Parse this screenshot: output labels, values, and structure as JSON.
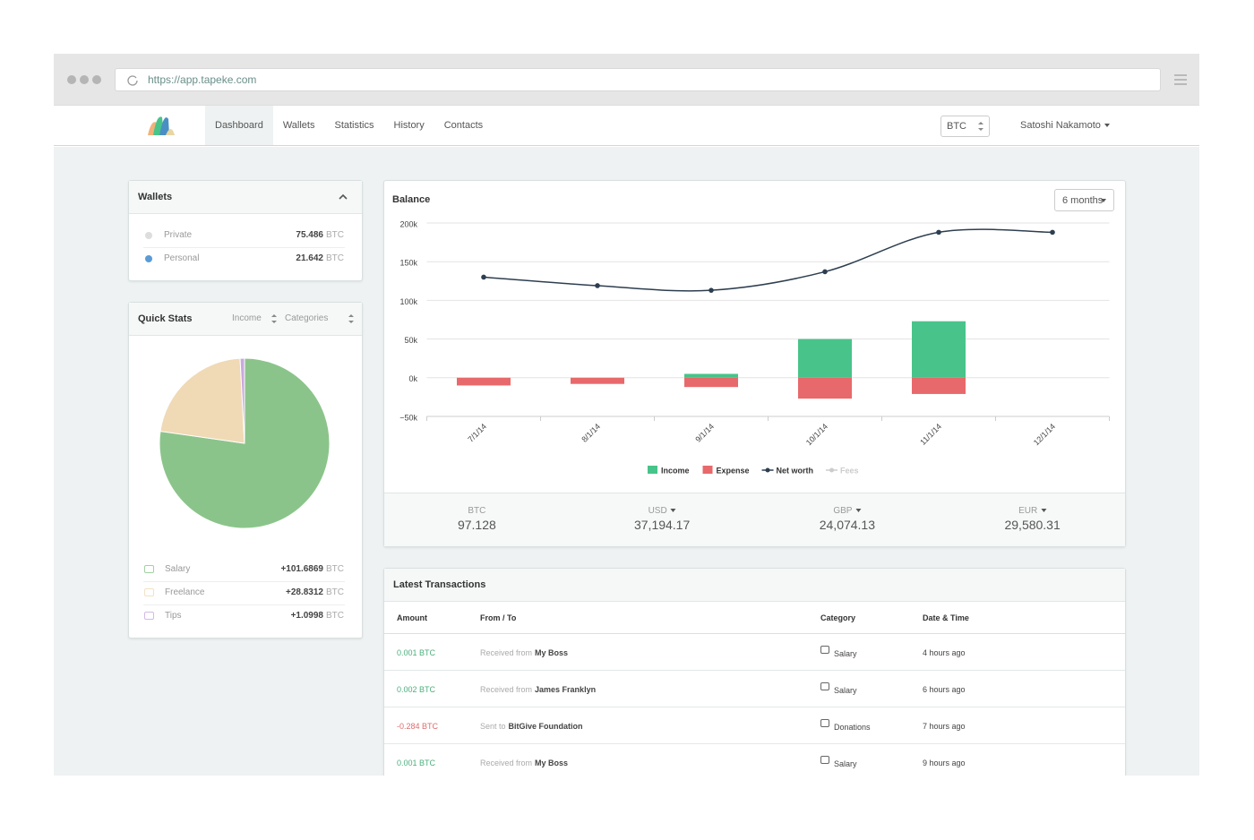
{
  "browser": {
    "url": "https://app.tapeke.com"
  },
  "nav": {
    "items": [
      "Dashboard",
      "Wallets",
      "Statistics",
      "History",
      "Contacts"
    ],
    "currency": "BTC",
    "user": "Satoshi Nakamoto"
  },
  "wallets": {
    "title": "Wallets",
    "rows": [
      {
        "name": "Private",
        "amount": "75.486",
        "unit": "BTC",
        "color": "#dddddd"
      },
      {
        "name": "Personal",
        "amount": "21.642",
        "unit": "BTC",
        "color": "#5b9bd5"
      }
    ]
  },
  "quick_stats": {
    "title": "Quick Stats",
    "filters": [
      "Income",
      "Categories"
    ]
  },
  "chart_data": [
    {
      "type": "bar",
      "title": "Balance",
      "range_button": "6 months",
      "categories": [
        "7/1/14",
        "8/1/14",
        "9/1/14",
        "10/1/14",
        "11/1/14",
        "12/1/14"
      ],
      "series": [
        {
          "name": "Income",
          "type": "bar",
          "color": "#48c48a",
          "values": [
            0,
            0,
            5000,
            50000,
            73000,
            0
          ]
        },
        {
          "name": "Expense",
          "type": "bar",
          "color": "#e8696b",
          "values": [
            -10000,
            -8000,
            -12000,
            -27000,
            -21000,
            0
          ]
        },
        {
          "name": "Net worth",
          "type": "line",
          "color": "#2d3e50",
          "values": [
            130000,
            119000,
            113000,
            137000,
            188000,
            188000
          ]
        },
        {
          "name": "Fees",
          "type": "line",
          "color": "#cccccc",
          "hidden": true,
          "values": [
            null,
            null,
            null,
            null,
            null,
            null
          ]
        }
      ],
      "ylim": [
        -50000,
        200000
      ],
      "yticks": [
        {
          "value": -50000,
          "label": "−50k"
        },
        {
          "value": 0,
          "label": "0k"
        },
        {
          "value": 50000,
          "label": "50k"
        },
        {
          "value": 100000,
          "label": "100k"
        },
        {
          "value": 150000,
          "label": "150k"
        },
        {
          "value": 200000,
          "label": "200k"
        }
      ],
      "grid": true
    },
    {
      "type": "pie",
      "categories": [
        "Salary",
        "Freelance",
        "Tips"
      ],
      "values": [
        101.6869,
        28.8312,
        1.0998
      ],
      "value_labels": [
        "+101.6869",
        "+28.8312",
        "+1.0998"
      ],
      "unit": "BTC",
      "colors": [
        "#8bc48a",
        "#f0d9b5",
        "#c9a8e0"
      ]
    }
  ],
  "totals": [
    {
      "label": "BTC",
      "value": "97.128"
    },
    {
      "label": "USD",
      "value": "37,194.17"
    },
    {
      "label": "GBP",
      "value": "24,074.13"
    },
    {
      "label": "EUR",
      "value": "29,580.31"
    }
  ],
  "transactions": {
    "title": "Latest Transactions",
    "columns": [
      "Amount",
      "From / To",
      "Category",
      "Date & Time"
    ],
    "rows": [
      {
        "amount": "0.001 BTC",
        "direction": "Received from",
        "party": "My Boss",
        "category": "Salary",
        "time": "4 hours ago"
      },
      {
        "amount": "0.002 BTC",
        "direction": "Received from",
        "party": "James Franklyn",
        "category": "Salary",
        "time": "6 hours ago"
      },
      {
        "amount": "-0.284 BTC",
        "direction": "Sent to",
        "party": "BitGive Foundation",
        "category": "Donations",
        "time": "7 hours ago"
      },
      {
        "amount": "0.001 BTC",
        "direction": "Received from",
        "party": "My Boss",
        "category": "Salary",
        "time": "9 hours ago"
      }
    ]
  }
}
